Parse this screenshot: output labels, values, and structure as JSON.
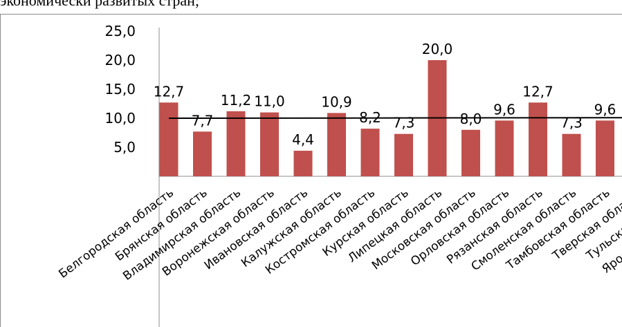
{
  "caption": "экономически развитых стран;",
  "chart_data": {
    "type": "bar",
    "categories": [
      "Белгородская область",
      "Брянская область",
      "Владимирская область",
      "Воронежская область",
      "Ивановская область",
      "Калужская область",
      "Костромская область",
      "Курская область",
      "Липецкая область",
      "Московская область",
      "Орловская область",
      "Рязанская область",
      "Смоленская область",
      "Тамбовская область",
      "Тверская область",
      "Тульская область",
      "Ярославская область"
    ],
    "values": [
      12.7,
      7.7,
      11.2,
      11.0,
      4.4,
      10.9,
      8.2,
      7.3,
      20.0,
      8.0,
      9.6,
      12.7,
      7.3,
      9.6,
      null,
      null,
      null
    ],
    "data_labels": [
      "12,7",
      "7,7",
      "11,2",
      "11,0",
      "4,4",
      "10,9",
      "8,2",
      "7,3",
      "20,0",
      "8,0",
      "9,6",
      "12,7",
      "7,3",
      "9,6",
      "",
      "",
      ""
    ],
    "y_ticks": [
      "25,0",
      "20,0",
      "15,0",
      "10,0",
      "5,0"
    ],
    "y_tick_values": [
      25,
      20,
      15,
      10,
      5
    ],
    "ylim": [
      0,
      25
    ],
    "trendline": true,
    "grid": false,
    "bar_color": "#c0504d",
    "trend_color": "#000000"
  }
}
